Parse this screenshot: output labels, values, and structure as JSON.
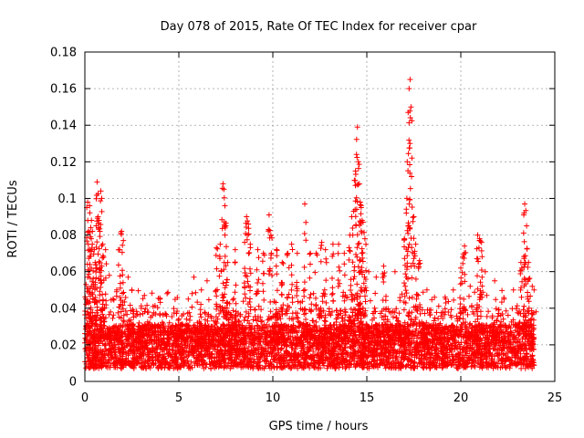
{
  "chart_data": {
    "type": "scatter",
    "title": "Day 078 of 2015, Rate Of TEC Index for receiver cpar",
    "xlabel": "GPS time / hours",
    "ylabel": "ROTI / TECUs",
    "xlim": [
      0,
      25
    ],
    "ylim": [
      0,
      0.18
    ],
    "xticks": [
      0,
      5,
      10,
      15,
      20,
      25
    ],
    "xtick_labels": [
      "0",
      "5",
      "10",
      "15",
      "20",
      "25"
    ],
    "yticks": [
      0,
      0.02,
      0.04,
      0.06,
      0.08,
      0.1,
      0.12,
      0.14,
      0.16,
      0.18
    ],
    "ytick_labels": [
      "0",
      "0.02",
      "0.04",
      "0.06",
      "0.08",
      "0.1",
      "0.12",
      "0.14",
      "0.16",
      "0.18"
    ],
    "grid": true,
    "marker": "+",
    "color": "#ff0000",
    "series": [
      {
        "name": "ROTI",
        "points": [
          [
            0.05,
            0.045
          ],
          [
            0.1,
            0.095
          ],
          [
            0.15,
            0.098
          ],
          [
            0.2,
            0.082
          ],
          [
            0.25,
            0.096
          ],
          [
            0.3,
            0.079
          ],
          [
            0.35,
            0.088
          ],
          [
            0.4,
            0.075
          ],
          [
            0.5,
            0.072
          ],
          [
            0.55,
            0.065
          ],
          [
            0.6,
            0.085
          ],
          [
            0.65,
            0.109
          ],
          [
            0.7,
            0.09
          ],
          [
            0.75,
            0.088
          ],
          [
            0.8,
            0.082
          ],
          [
            0.85,
            0.104
          ],
          [
            0.9,
            0.1
          ],
          [
            0.95,
            0.075
          ],
          [
            1.1,
            0.072
          ],
          [
            1.3,
            0.058
          ],
          [
            1.5,
            0.045
          ],
          [
            1.7,
            0.05
          ],
          [
            1.85,
            0.072
          ],
          [
            1.95,
            0.082
          ],
          [
            2.05,
            0.077
          ],
          [
            2.3,
            0.057
          ],
          [
            2.5,
            0.05
          ],
          [
            3.0,
            0.04
          ],
          [
            3.5,
            0.035
          ],
          [
            4.0,
            0.045
          ],
          [
            4.5,
            0.032
          ],
          [
            5.0,
            0.034
          ],
          [
            5.5,
            0.045
          ],
          [
            5.8,
            0.057
          ],
          [
            6.2,
            0.05
          ],
          [
            6.5,
            0.055
          ],
          [
            7.0,
            0.073
          ],
          [
            7.2,
            0.075
          ],
          [
            7.35,
            0.108
          ],
          [
            7.4,
            0.105
          ],
          [
            7.45,
            0.096
          ],
          [
            7.5,
            0.085
          ],
          [
            7.6,
            0.065
          ],
          [
            8.0,
            0.072
          ],
          [
            8.5,
            0.076
          ],
          [
            8.6,
            0.09
          ],
          [
            8.7,
            0.086
          ],
          [
            8.8,
            0.075
          ],
          [
            9.2,
            0.072
          ],
          [
            9.5,
            0.07
          ],
          [
            9.8,
            0.091
          ],
          [
            9.9,
            0.08
          ],
          [
            10.2,
            0.072
          ],
          [
            10.5,
            0.065
          ],
          [
            10.8,
            0.07
          ],
          [
            11.0,
            0.075
          ],
          [
            11.3,
            0.07
          ],
          [
            11.7,
            0.097
          ],
          [
            12.0,
            0.07
          ],
          [
            12.3,
            0.07
          ],
          [
            12.6,
            0.076
          ],
          [
            12.8,
            0.072
          ],
          [
            13.2,
            0.075
          ],
          [
            13.5,
            0.075
          ],
          [
            13.8,
            0.07
          ],
          [
            14.1,
            0.08
          ],
          [
            14.2,
            0.09
          ],
          [
            14.3,
            0.093
          ],
          [
            14.4,
            0.115
          ],
          [
            14.45,
            0.124
          ],
          [
            14.5,
            0.139
          ],
          [
            14.55,
            0.12
          ],
          [
            14.6,
            0.108
          ],
          [
            14.65,
            0.098
          ],
          [
            14.7,
            0.095
          ],
          [
            14.75,
            0.088
          ],
          [
            14.8,
            0.087
          ],
          [
            14.9,
            0.078
          ],
          [
            15.1,
            0.06
          ],
          [
            15.5,
            0.057
          ],
          [
            15.9,
            0.063
          ],
          [
            16.5,
            0.06
          ],
          [
            17.0,
            0.078
          ],
          [
            17.1,
            0.092
          ],
          [
            17.15,
            0.12
          ],
          [
            17.2,
            0.147
          ],
          [
            17.25,
            0.16
          ],
          [
            17.3,
            0.165
          ],
          [
            17.35,
            0.15
          ],
          [
            17.4,
            0.122
          ],
          [
            17.5,
            0.09
          ],
          [
            17.6,
            0.075
          ],
          [
            17.8,
            0.066
          ],
          [
            18.2,
            0.05
          ],
          [
            18.6,
            0.046
          ],
          [
            19.2,
            0.045
          ],
          [
            19.6,
            0.05
          ],
          [
            20.0,
            0.062
          ],
          [
            20.1,
            0.068
          ],
          [
            20.2,
            0.074
          ],
          [
            20.5,
            0.052
          ],
          [
            20.9,
            0.08
          ],
          [
            21.0,
            0.078
          ],
          [
            21.1,
            0.076
          ],
          [
            21.3,
            0.06
          ],
          [
            21.8,
            0.055
          ],
          [
            22.3,
            0.045
          ],
          [
            22.8,
            0.05
          ],
          [
            23.2,
            0.065
          ],
          [
            23.35,
            0.091
          ],
          [
            23.4,
            0.097
          ],
          [
            23.5,
            0.085
          ],
          [
            23.6,
            0.065
          ],
          [
            23.8,
            0.052
          ],
          [
            23.9,
            0.05
          ],
          [
            24.0,
            0.038
          ]
        ],
        "dense_band": {
          "description": "continuous dense cluster of points across the full time range",
          "x_range": [
            0,
            23.9
          ],
          "y_range": [
            0.003,
            0.04
          ],
          "typical_value": 0.015
        }
      }
    ]
  }
}
